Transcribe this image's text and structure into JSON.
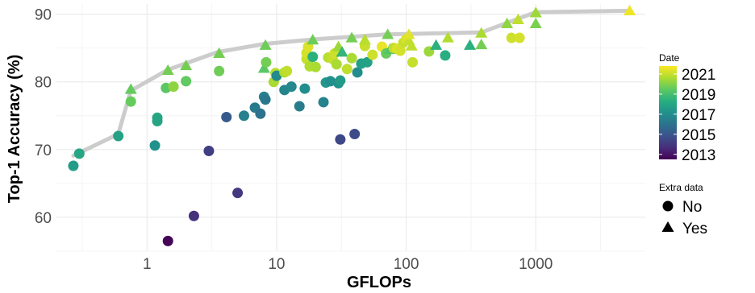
{
  "chart_data": {
    "type": "scatter",
    "xlabel": "GFLOPs",
    "ylabel": "Top-1 Accuracy (%)",
    "xscale": "log10",
    "xlim": [
      0.2,
      7000
    ],
    "ylim": [
      55,
      91.5
    ],
    "xticks": [
      {
        "value": 1,
        "label": "1"
      },
      {
        "value": 10,
        "label": "10"
      },
      {
        "value": 100,
        "label": "100"
      },
      {
        "value": 1000,
        "label": "1000"
      }
    ],
    "yticks": [
      {
        "value": 60,
        "label": "60"
      },
      {
        "value": 70,
        "label": "70"
      },
      {
        "value": 80,
        "label": "80"
      },
      {
        "value": 90,
        "label": "90"
      }
    ],
    "grid": true,
    "frontier": {
      "color": "#cccccc",
      "points": [
        {
          "x": 0.27,
          "y": 69.1
        },
        {
          "x": 0.6,
          "y": 72.3
        },
        {
          "x": 0.75,
          "y": 78.7
        },
        {
          "x": 1.45,
          "y": 81.8
        },
        {
          "x": 3.5,
          "y": 84.4
        },
        {
          "x": 8.0,
          "y": 85.6
        },
        {
          "x": 20,
          "y": 86.3
        },
        {
          "x": 70,
          "y": 87.0
        },
        {
          "x": 380,
          "y": 87.3
        },
        {
          "x": 1000,
          "y": 90.3
        },
        {
          "x": 5300,
          "y": 90.5
        }
      ]
    },
    "color_legend": {
      "title": "Date",
      "min": 2012.5,
      "max": 2021.8,
      "labels": [
        {
          "value": 2021,
          "label": "2021"
        },
        {
          "value": 2019,
          "label": "2019"
        },
        {
          "value": 2017,
          "label": "2017"
        },
        {
          "value": 2015,
          "label": "2015"
        },
        {
          "value": 2013,
          "label": "2013"
        }
      ]
    },
    "shape_legend": {
      "title": "Extra data",
      "items": [
        {
          "shape": "circle",
          "label": "No"
        },
        {
          "shape": "triangle",
          "label": "Yes"
        }
      ]
    },
    "points": [
      {
        "x": 0.27,
        "y": 67.6,
        "date": 2017.6,
        "extra": false
      },
      {
        "x": 0.3,
        "y": 69.4,
        "date": 2018.0,
        "extra": false
      },
      {
        "x": 0.6,
        "y": 72.0,
        "date": 2017.8,
        "extra": false
      },
      {
        "x": 0.75,
        "y": 77.1,
        "date": 2019.6,
        "extra": false
      },
      {
        "x": 0.75,
        "y": 78.9,
        "date": 2019.6,
        "extra": true
      },
      {
        "x": 1.15,
        "y": 70.6,
        "date": 2017.2,
        "extra": false
      },
      {
        "x": 1.2,
        "y": 74.7,
        "date": 2018.0,
        "extra": false
      },
      {
        "x": 1.2,
        "y": 74.2,
        "date": 2017.9,
        "extra": false
      },
      {
        "x": 1.4,
        "y": 79.1,
        "date": 2019.4,
        "extra": false
      },
      {
        "x": 1.45,
        "y": 81.7,
        "date": 2019.8,
        "extra": true
      },
      {
        "x": 1.6,
        "y": 79.3,
        "date": 2020.2,
        "extra": false
      },
      {
        "x": 2.0,
        "y": 80.1,
        "date": 2019.5,
        "extra": false
      },
      {
        "x": 2.0,
        "y": 82.4,
        "date": 2019.8,
        "extra": true
      },
      {
        "x": 1.45,
        "y": 56.5,
        "date": 2012.6,
        "extra": false
      },
      {
        "x": 2.3,
        "y": 60.2,
        "date": 2013.8,
        "extra": false
      },
      {
        "x": 3.0,
        "y": 69.8,
        "date": 2014.2,
        "extra": false
      },
      {
        "x": 3.6,
        "y": 81.6,
        "date": 2019.7,
        "extra": false
      },
      {
        "x": 3.6,
        "y": 84.2,
        "date": 2019.8,
        "extra": true
      },
      {
        "x": 4.1,
        "y": 74.8,
        "date": 2015.1,
        "extra": false
      },
      {
        "x": 5.0,
        "y": 63.6,
        "date": 2014.0,
        "extra": false
      },
      {
        "x": 5.6,
        "y": 75.0,
        "date": 2016.5,
        "extra": false
      },
      {
        "x": 6.8,
        "y": 76.2,
        "date": 2016.3,
        "extra": false
      },
      {
        "x": 7.5,
        "y": 75.3,
        "date": 2016.0,
        "extra": false
      },
      {
        "x": 8.0,
        "y": 77.8,
        "date": 2016.6,
        "extra": false
      },
      {
        "x": 8.2,
        "y": 77.4,
        "date": 2016.2,
        "extra": false
      },
      {
        "x": 8.0,
        "y": 82.0,
        "date": 2019.4,
        "extra": true
      },
      {
        "x": 8.3,
        "y": 82.9,
        "date": 2019.8,
        "extra": false
      },
      {
        "x": 8.2,
        "y": 85.4,
        "date": 2019.7,
        "extra": true
      },
      {
        "x": 9.5,
        "y": 80.0,
        "date": 2020.6,
        "extra": false
      },
      {
        "x": 9.8,
        "y": 81.3,
        "date": 2020.8,
        "extra": false
      },
      {
        "x": 10.0,
        "y": 80.9,
        "date": 2016.9,
        "extra": false
      },
      {
        "x": 11.5,
        "y": 78.8,
        "date": 2016.7,
        "extra": false
      },
      {
        "x": 11.5,
        "y": 81.4,
        "date": 2020.7,
        "extra": false
      },
      {
        "x": 12.0,
        "y": 81.6,
        "date": 2020.9,
        "extra": false
      },
      {
        "x": 13.0,
        "y": 79.3,
        "date": 2016.8,
        "extra": false
      },
      {
        "x": 15.0,
        "y": 76.4,
        "date": 2016.4,
        "extra": false
      },
      {
        "x": 16.5,
        "y": 79.0,
        "date": 2017.0,
        "extra": false
      },
      {
        "x": 17.0,
        "y": 83.4,
        "date": 2021.0,
        "extra": false
      },
      {
        "x": 17.0,
        "y": 84.3,
        "date": 2021.2,
        "extra": false
      },
      {
        "x": 17.5,
        "y": 85.2,
        "date": 2021.3,
        "extra": false
      },
      {
        "x": 18.0,
        "y": 82.3,
        "date": 2020.7,
        "extra": false
      },
      {
        "x": 19.0,
        "y": 83.7,
        "date": 2018.4,
        "extra": false
      },
      {
        "x": 19.0,
        "y": 86.2,
        "date": 2019.7,
        "extra": true
      },
      {
        "x": 20.0,
        "y": 82.2,
        "date": 2020.6,
        "extra": false
      },
      {
        "x": 23.0,
        "y": 77.0,
        "date": 2016.6,
        "extra": false
      },
      {
        "x": 24.0,
        "y": 79.9,
        "date": 2017.4,
        "extra": false
      },
      {
        "x": 25.0,
        "y": 83.6,
        "date": 2020.8,
        "extra": false
      },
      {
        "x": 26.0,
        "y": 80.1,
        "date": 2017.1,
        "extra": false
      },
      {
        "x": 27.0,
        "y": 83.4,
        "date": 2021.0,
        "extra": false
      },
      {
        "x": 28.0,
        "y": 84.2,
        "date": 2021.1,
        "extra": false
      },
      {
        "x": 29.0,
        "y": 82.6,
        "date": 2020.6,
        "extra": false
      },
      {
        "x": 30.0,
        "y": 79.8,
        "date": 2017.2,
        "extra": false
      },
      {
        "x": 30.0,
        "y": 85.2,
        "date": 2020.4,
        "extra": true
      },
      {
        "x": 31.0,
        "y": 80.2,
        "date": 2017.5,
        "extra": false
      },
      {
        "x": 31.0,
        "y": 71.5,
        "date": 2014.5,
        "extra": false
      },
      {
        "x": 32.0,
        "y": 84.4,
        "date": 2018.6,
        "extra": true
      },
      {
        "x": 35.0,
        "y": 81.9,
        "date": 2020.9,
        "extra": false
      },
      {
        "x": 38.0,
        "y": 83.5,
        "date": 2020.6,
        "extra": false
      },
      {
        "x": 38.0,
        "y": 86.5,
        "date": 2019.8,
        "extra": true
      },
      {
        "x": 40.0,
        "y": 72.3,
        "date": 2014.6,
        "extra": false
      },
      {
        "x": 42.0,
        "y": 81.4,
        "date": 2017.0,
        "extra": false
      },
      {
        "x": 45.0,
        "y": 82.7,
        "date": 2017.7,
        "extra": false
      },
      {
        "x": 48.0,
        "y": 85.3,
        "date": 2021.0,
        "extra": false
      },
      {
        "x": 48.0,
        "y": 86.2,
        "date": 2020.8,
        "extra": true
      },
      {
        "x": 50.0,
        "y": 82.9,
        "date": 2017.8,
        "extra": false
      },
      {
        "x": 55.0,
        "y": 84.0,
        "date": 2021.1,
        "extra": false
      },
      {
        "x": 65.0,
        "y": 85.2,
        "date": 2021.5,
        "extra": false
      },
      {
        "x": 70.0,
        "y": 84.2,
        "date": 2019.6,
        "extra": false
      },
      {
        "x": 72.0,
        "y": 87.0,
        "date": 2019.8,
        "extra": true
      },
      {
        "x": 75.0,
        "y": 84.8,
        "date": 2019.2,
        "extra": true
      },
      {
        "x": 80.0,
        "y": 85.0,
        "date": 2020.9,
        "extra": false
      },
      {
        "x": 85.0,
        "y": 84.9,
        "date": 2021.3,
        "extra": false
      },
      {
        "x": 90.0,
        "y": 84.6,
        "date": 2021.2,
        "extra": false
      },
      {
        "x": 95.0,
        "y": 85.8,
        "date": 2021.0,
        "extra": false
      },
      {
        "x": 100.0,
        "y": 86.3,
        "date": 2021.3,
        "extra": false
      },
      {
        "x": 105.0,
        "y": 86.1,
        "date": 2021.0,
        "extra": true
      },
      {
        "x": 110.0,
        "y": 85.3,
        "date": 2020.9,
        "extra": true
      },
      {
        "x": 105.0,
        "y": 87.0,
        "date": 2021.4,
        "extra": true
      },
      {
        "x": 112.0,
        "y": 82.9,
        "date": 2021.0,
        "extra": false
      },
      {
        "x": 150.0,
        "y": 84.5,
        "date": 2020.4,
        "extra": false
      },
      {
        "x": 170.0,
        "y": 85.4,
        "date": 2018.4,
        "extra": true
      },
      {
        "x": 200.0,
        "y": 83.9,
        "date": 2018.3,
        "extra": false
      },
      {
        "x": 210.0,
        "y": 86.5,
        "date": 2020.7,
        "extra": true
      },
      {
        "x": 310.0,
        "y": 85.4,
        "date": 2018.4,
        "extra": true
      },
      {
        "x": 380.0,
        "y": 85.5,
        "date": 2019.8,
        "extra": true
      },
      {
        "x": 380.0,
        "y": 87.2,
        "date": 2020.6,
        "extra": true
      },
      {
        "x": 600.0,
        "y": 88.6,
        "date": 2020.2,
        "extra": true
      },
      {
        "x": 650.0,
        "y": 86.5,
        "date": 2021.1,
        "extra": false
      },
      {
        "x": 730.0,
        "y": 89.2,
        "date": 2020.9,
        "extra": true
      },
      {
        "x": 750.0,
        "y": 86.5,
        "date": 2021.2,
        "extra": false
      },
      {
        "x": 1000.0,
        "y": 90.2,
        "date": 2020.4,
        "extra": true
      },
      {
        "x": 1000.0,
        "y": 88.6,
        "date": 2019.9,
        "extra": true
      },
      {
        "x": 5300.0,
        "y": 90.5,
        "date": 2021.6,
        "extra": true
      }
    ]
  }
}
